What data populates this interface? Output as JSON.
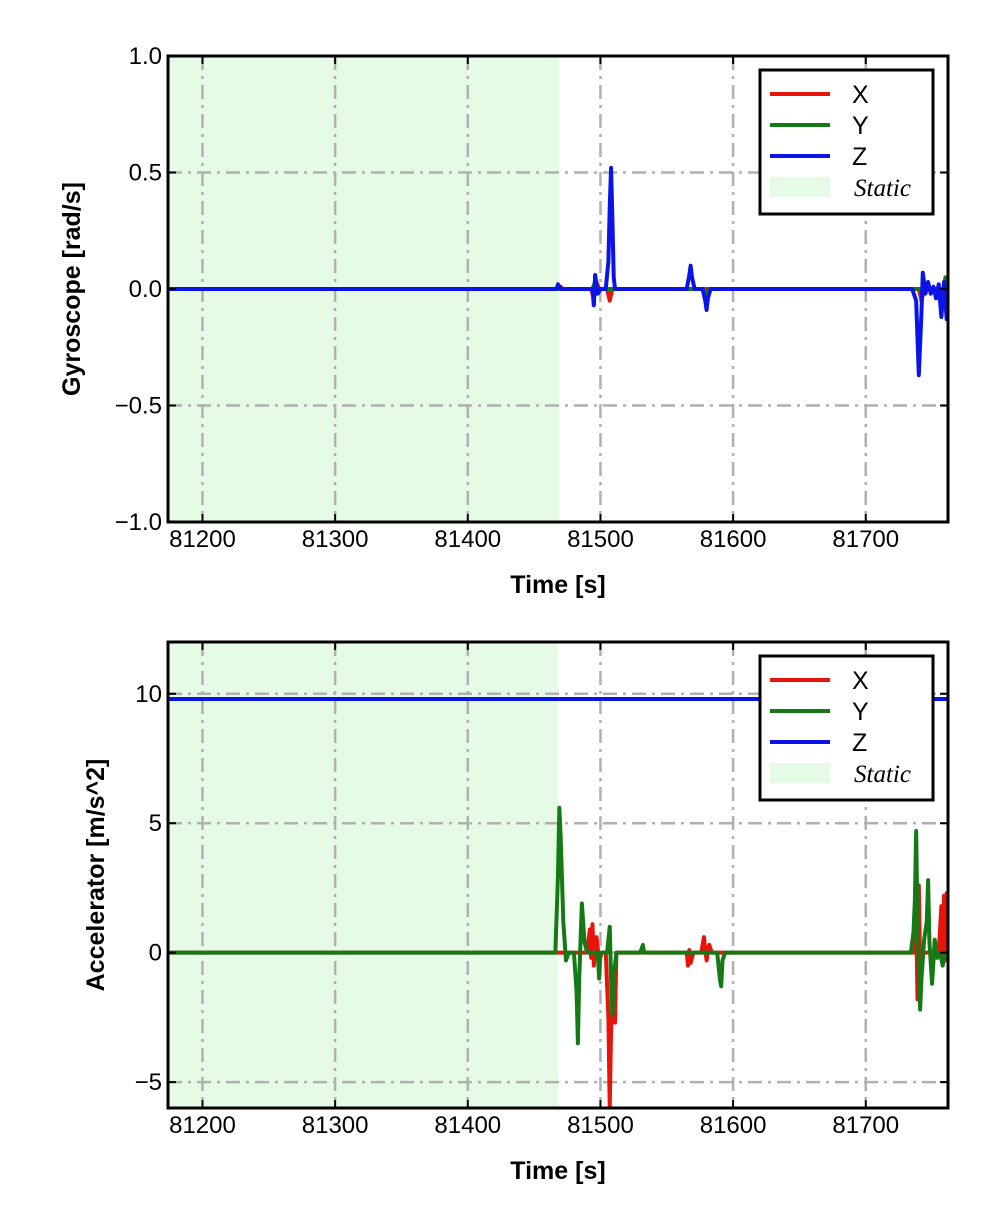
{
  "colors": {
    "x": "#e8140c",
    "y": "#157a16",
    "z": "#0a14e6",
    "static": "#e6fbe6",
    "grid": "#b0b0b0"
  },
  "chart_data": [
    {
      "type": "line",
      "id": "gyro",
      "xlabel": "Time [s]",
      "ylabel": "Gyroscope [rad/s]",
      "xlim": [
        81174,
        81762
      ],
      "ylim": [
        -1.0,
        1.0
      ],
      "xticks": [
        81200,
        81300,
        81400,
        81500,
        81600,
        81700
      ],
      "xtick_labels": [
        "81200",
        "81300",
        "81400",
        "81500",
        "81600",
        "81700"
      ],
      "yticks": [
        -1.0,
        -0.5,
        0.0,
        0.5,
        1.0
      ],
      "ytick_labels": [
        "−1.0",
        "−0.5",
        "0.0",
        "0.5",
        "1.0"
      ],
      "grid": true,
      "legend_position": "top-right",
      "static_region": [
        81174,
        81469
      ],
      "legend": [
        "X",
        "Y",
        "Z",
        "Static"
      ],
      "series": [
        {
          "name": "X",
          "color_key": "x",
          "points": [
            [
              81174,
              0.0
            ],
            [
              81469,
              0.0
            ],
            [
              81470,
              0.01
            ],
            [
              81471,
              0.0
            ],
            [
              81493,
              0.0
            ],
            [
              81495,
              -0.04
            ],
            [
              81497,
              0.03
            ],
            [
              81499,
              0.0
            ],
            [
              81505,
              0.0
            ],
            [
              81507,
              -0.05
            ],
            [
              81509,
              0.0
            ],
            [
              81600,
              0.0
            ],
            [
              81740,
              0.0
            ],
            [
              81742,
              -0.05
            ],
            [
              81744,
              0.0
            ],
            [
              81762,
              0.0
            ]
          ]
        },
        {
          "name": "Y",
          "color_key": "y",
          "points": [
            [
              81174,
              0.0
            ],
            [
              81469,
              0.0
            ],
            [
              81494,
              0.0
            ],
            [
              81496,
              0.03
            ],
            [
              81498,
              0.0
            ],
            [
              81578,
              0.0
            ],
            [
              81580,
              -0.03
            ],
            [
              81582,
              0.0
            ],
            [
              81755,
              0.0
            ],
            [
              81758,
              -0.05
            ],
            [
              81760,
              0.05
            ],
            [
              81762,
              0.0
            ]
          ]
        },
        {
          "name": "Z",
          "color_key": "z",
          "points": [
            [
              81174,
              0.0
            ],
            [
              81467,
              0.0
            ],
            [
              81468,
              0.02
            ],
            [
              81470,
              0.0
            ],
            [
              81494,
              0.0
            ],
            [
              81495,
              -0.07
            ],
            [
              81496,
              0.06
            ],
            [
              81498,
              -0.02
            ],
            [
              81500,
              0.0
            ],
            [
              81504,
              0.0
            ],
            [
              81506,
              0.12
            ],
            [
              81507,
              0.35
            ],
            [
              81508,
              0.52
            ],
            [
              81509,
              0.3
            ],
            [
              81510,
              0.05
            ],
            [
              81511,
              0.0
            ],
            [
              81565,
              0.0
            ],
            [
              81567,
              0.06
            ],
            [
              81568,
              0.1
            ],
            [
              81569,
              0.05
            ],
            [
              81571,
              0.0
            ],
            [
              81577,
              0.0
            ],
            [
              81579,
              -0.05
            ],
            [
              81580,
              -0.09
            ],
            [
              81581,
              -0.04
            ],
            [
              81583,
              0.0
            ],
            [
              81735,
              0.0
            ],
            [
              81738,
              -0.05
            ],
            [
              81740,
              -0.37
            ],
            [
              81742,
              -0.1
            ],
            [
              81743,
              0.07
            ],
            [
              81745,
              -0.02
            ],
            [
              81747,
              0.03
            ],
            [
              81749,
              -0.02
            ],
            [
              81751,
              0.01
            ],
            [
              81753,
              -0.04
            ],
            [
              81755,
              0.02
            ],
            [
              81757,
              -0.12
            ],
            [
              81759,
              0.03
            ],
            [
              81761,
              -0.13
            ],
            [
              81762,
              -0.05
            ]
          ]
        }
      ]
    },
    {
      "type": "line",
      "id": "accel",
      "xlabel": "Time [s]",
      "ylabel": "Accelerator [m/s^2]",
      "xlim": [
        81174,
        81762
      ],
      "ylim": [
        -6.0,
        12.0
      ],
      "xticks": [
        81200,
        81300,
        81400,
        81500,
        81600,
        81700
      ],
      "xtick_labels": [
        "81200",
        "81300",
        "81400",
        "81500",
        "81600",
        "81700"
      ],
      "yticks": [
        -5,
        0,
        5,
        10
      ],
      "ytick_labels": [
        "−5",
        "0",
        "5",
        "10"
      ],
      "grid": true,
      "legend_position": "top-right",
      "static_region": [
        81174,
        81468
      ],
      "legend": [
        "X",
        "Y",
        "Z",
        "Static"
      ],
      "series": [
        {
          "name": "X",
          "color_key": "x",
          "points": [
            [
              81174,
              0.0
            ],
            [
              81490,
              0.0
            ],
            [
              81492,
              0.9
            ],
            [
              81493,
              -0.2
            ],
            [
              81494,
              1.1
            ],
            [
              81495,
              -0.5
            ],
            [
              81497,
              0.6
            ],
            [
              81499,
              -0.3
            ],
            [
              81501,
              0.0
            ],
            [
              81504,
              0.0
            ],
            [
              81506,
              -2.5
            ],
            [
              81507,
              -6.0
            ],
            [
              81508,
              -3.0
            ],
            [
              81510,
              -1.5
            ],
            [
              81511,
              -2.7
            ],
            [
              81512,
              0.0
            ],
            [
              81565,
              0.0
            ],
            [
              81566,
              -0.5
            ],
            [
              81567,
              0.1
            ],
            [
              81568,
              -0.4
            ],
            [
              81570,
              0.0
            ],
            [
              81576,
              0.0
            ],
            [
              81578,
              0.6
            ],
            [
              81580,
              -0.3
            ],
            [
              81582,
              0.3
            ],
            [
              81584,
              0.0
            ],
            [
              81736,
              0.0
            ],
            [
              81738,
              1.5
            ],
            [
              81739,
              -1.8
            ],
            [
              81740,
              2.6
            ],
            [
              81741,
              -0.5
            ],
            [
              81743,
              0.0
            ],
            [
              81755,
              0.0
            ],
            [
              81757,
              1.8
            ],
            [
              81758,
              -0.4
            ],
            [
              81759,
              2.2
            ],
            [
              81760,
              -0.3
            ],
            [
              81761,
              2.3
            ],
            [
              81762,
              0.0
            ]
          ]
        },
        {
          "name": "Y",
          "color_key": "y",
          "points": [
            [
              81174,
              0.0
            ],
            [
              81466,
              0.0
            ],
            [
              81468,
              3.0
            ],
            [
              81469,
              5.6
            ],
            [
              81470,
              4.5
            ],
            [
              81472,
              1.2
            ],
            [
              81474,
              -0.3
            ],
            [
              81476,
              0.0
            ],
            [
              81480,
              0.0
            ],
            [
              81482,
              -1.5
            ],
            [
              81483,
              -3.5
            ],
            [
              81484,
              -1.0
            ],
            [
              81486,
              1.9
            ],
            [
              81488,
              0.4
            ],
            [
              81490,
              0.0
            ],
            [
              81498,
              0.0
            ],
            [
              81499,
              -1.0
            ],
            [
              81500,
              0.0
            ],
            [
              81505,
              0.0
            ],
            [
              81507,
              1.0
            ],
            [
              81508,
              -1.0
            ],
            [
              81509,
              -2.4
            ],
            [
              81510,
              -0.9
            ],
            [
              81512,
              0.0
            ],
            [
              81530,
              0.0
            ],
            [
              81532,
              0.3
            ],
            [
              81533,
              0.0
            ],
            [
              81588,
              0.0
            ],
            [
              81590,
              -1.0
            ],
            [
              81591,
              -1.3
            ],
            [
              81592,
              -0.3
            ],
            [
              81594,
              0.0
            ],
            [
              81734,
              0.0
            ],
            [
              81736,
              0.8
            ],
            [
              81737,
              2.0
            ],
            [
              81738,
              4.7
            ],
            [
              81739,
              1.0
            ],
            [
              81740,
              -0.5
            ],
            [
              81741,
              -2.2
            ],
            [
              81742,
              -1.0
            ],
            [
              81744,
              0.5
            ],
            [
              81746,
              1.2
            ],
            [
              81747,
              2.8
            ],
            [
              81748,
              0.4
            ],
            [
              81750,
              -1.2
            ],
            [
              81752,
              0.5
            ],
            [
              81754,
              -0.2
            ],
            [
              81756,
              0.0
            ],
            [
              81758,
              -0.5
            ],
            [
              81760,
              0.0
            ],
            [
              81762,
              0.0
            ]
          ]
        },
        {
          "name": "Z",
          "color_key": "z",
          "points": [
            [
              81174,
              9.8
            ],
            [
              81300,
              9.8
            ],
            [
              81400,
              9.8
            ],
            [
              81500,
              9.8
            ],
            [
              81600,
              9.8
            ],
            [
              81740,
              9.8
            ],
            [
              81762,
              9.8
            ]
          ]
        }
      ]
    }
  ]
}
